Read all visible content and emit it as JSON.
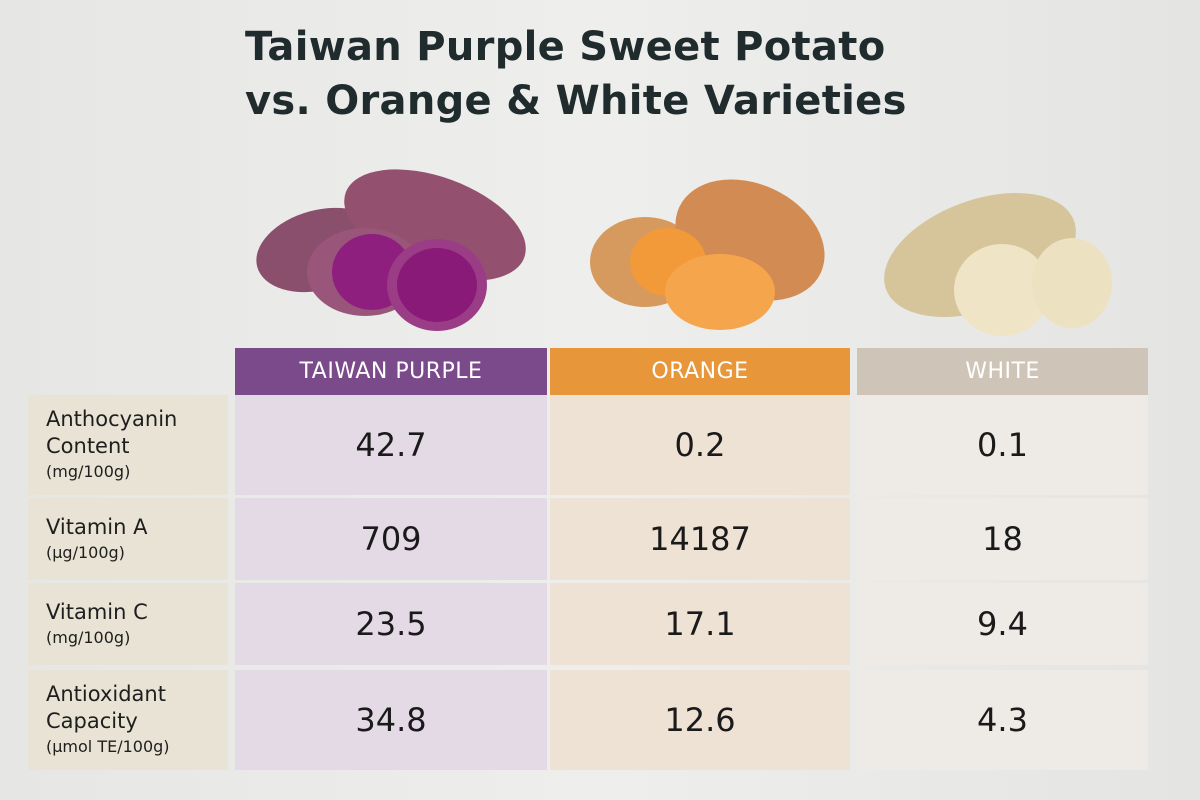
{
  "title_lines": [
    "Taiwan Purple Sweet Potato",
    "vs. Orange & White Varieties"
  ],
  "table": {
    "columns": [
      "TAIWAN PURPLE",
      "ORANGE",
      "WHITE"
    ],
    "rows": [
      {
        "label": [
          "Anthocyanin",
          "Content"
        ],
        "unit": "(mg/100g)",
        "values": [
          42.7,
          0.2,
          0.1
        ]
      },
      {
        "label": [
          "Vitamin A"
        ],
        "unit": "(µg/100g)",
        "values": [
          709,
          14187,
          18
        ]
      },
      {
        "label": [
          "Vitamin C"
        ],
        "unit": "(mg/100g)",
        "values": [
          23.5,
          17.1,
          9.4
        ]
      },
      {
        "label": [
          "Antioxidant",
          "Capacity"
        ],
        "unit": "(µmol TE/100g)",
        "values": [
          34.8,
          12.6,
          4.3
        ]
      }
    ]
  }
}
